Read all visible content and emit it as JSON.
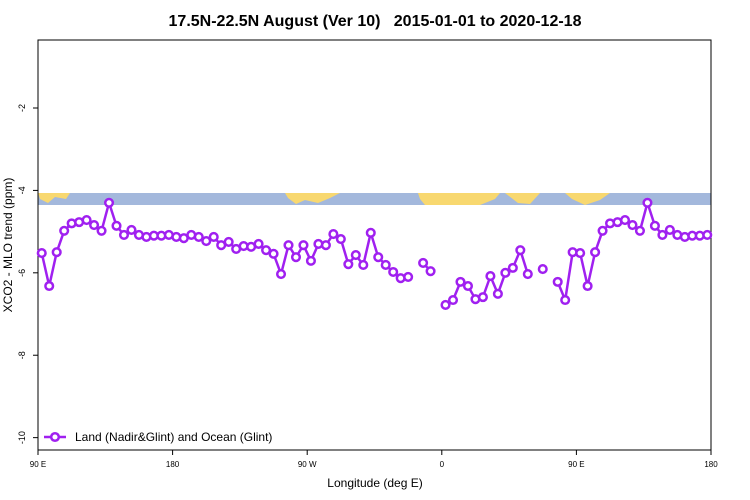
{
  "chart_data": {
    "type": "line",
    "title": "17.5N-22.5N August (Ver 10)   2015-01-01 to 2020-12-18",
    "x_label": "Longitude (deg E)",
    "y_label": "XCO2 - MLO trend (ppm)",
    "xlim": [
      90,
      540
    ],
    "ylim": [
      -10.3,
      -0.35
    ],
    "xticks": [
      {
        "value": 90,
        "label": "90 E"
      },
      180,
      {
        "value": 270,
        "label": "90 W"
      },
      {
        "value": 360,
        "label": "0"
      },
      {
        "value": 450,
        "label": "90 E"
      },
      {
        "value": 540,
        "label": "180"
      }
    ],
    "yticks": [
      -10,
      -8,
      -6,
      -4,
      -2
    ],
    "legend": "bottom-left",
    "x": [
      92.5,
      97.5,
      102.5,
      107.5,
      112.5,
      117.5,
      122.5,
      127.5,
      132.5,
      137.5,
      142.5,
      147.5,
      152.5,
      157.5,
      162.5,
      167.5,
      172.5,
      177.5,
      182.5,
      187.5,
      192.5,
      197.5,
      202.5,
      207.5,
      212.5,
      217.5,
      222.5,
      227.5,
      232.5,
      237.5,
      242.5,
      247.5,
      252.5,
      257.5,
      262.5,
      267.5,
      272.5,
      277.5,
      282.5,
      287.5,
      292.5,
      297.5,
      302.5,
      307.5,
      312.5,
      317.5,
      322.5,
      327.5,
      332.5,
      337.5,
      342.5,
      347.5,
      352.5,
      357.5,
      362.5,
      367.5,
      372.5,
      377.5,
      382.5,
      387.5,
      392.5,
      397.5,
      402.5,
      407.5,
      412.5,
      417.5,
      422.5,
      427.5,
      432.5,
      437.5,
      442.5,
      447.5,
      452.5,
      457.5,
      462.5,
      467.5,
      472.5,
      477.5,
      482.5,
      487.5,
      492.5,
      497.5,
      502.5,
      507.5,
      512.5,
      517.5,
      522.5,
      527.5,
      532.5,
      537.5
    ],
    "series": [
      {
        "name": "Land (Nadir&Glint) and Ocean (Glint)",
        "color": "#a020f0",
        "values": [
          -5.52,
          -6.32,
          -5.5,
          -4.98,
          -4.8,
          -4.77,
          -4.72,
          -4.84,
          -4.98,
          -4.3,
          -4.86,
          -5.08,
          -4.96,
          -5.08,
          -5.13,
          -5.1,
          -5.1,
          -5.08,
          -5.13,
          -5.16,
          -5.08,
          -5.13,
          -5.23,
          -5.13,
          -5.33,
          -5.25,
          -5.42,
          -5.35,
          -5.37,
          -5.3,
          -5.45,
          -5.54,
          -6.03,
          -5.33,
          -5.62,
          -5.33,
          -5.71,
          -5.3,
          -5.33,
          -5.06,
          -5.18,
          -5.79,
          -5.57,
          -5.81,
          -5.03,
          -5.62,
          -5.81,
          -5.98,
          -6.13,
          -6.1,
          null,
          -5.76,
          -5.96,
          null,
          -6.78,
          -6.66,
          -6.22,
          -6.32,
          -6.64,
          -6.59,
          -6.08,
          -6.51,
          -6.0,
          -5.88,
          -5.45,
          -6.03,
          null,
          -5.91,
          null,
          -6.22,
          -6.66,
          -5.5,
          -5.52,
          -6.32,
          -5.5,
          -4.98,
          -4.8,
          -4.77,
          -4.72,
          -4.84,
          -4.98,
          -4.3,
          -4.86,
          -5.08,
          -4.96,
          -5.08,
          -5.13,
          -5.1,
          -5.1,
          -5.08
        ]
      }
    ]
  }
}
